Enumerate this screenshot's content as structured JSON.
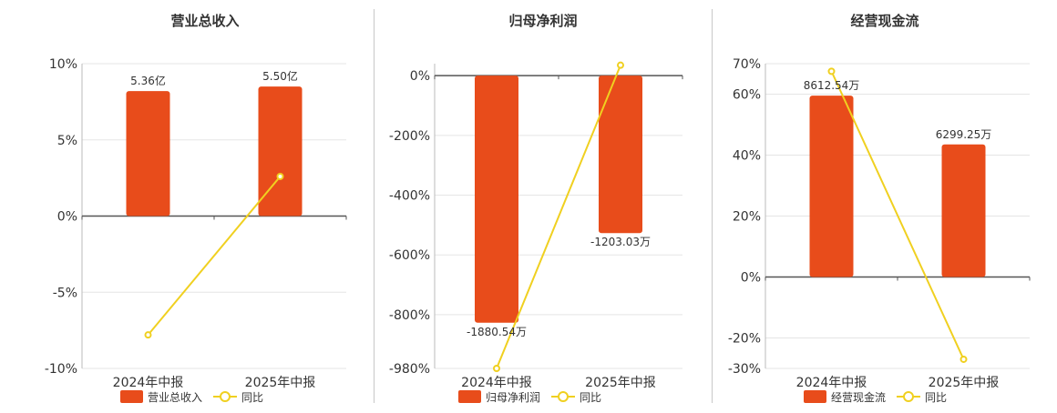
{
  "colors": {
    "bar": "#e84c1b",
    "line": "#f0d020",
    "axis": "#555555",
    "grid": "#e5e5e5",
    "text": "#333333"
  },
  "chart_data": [
    {
      "type": "bar",
      "title": "营业总收入",
      "categories": [
        "2024年中报",
        "2025年中报"
      ],
      "series": [
        {
          "name": "营业总收入",
          "type": "bar",
          "values": [
            8.2,
            8.5
          ],
          "labels": [
            "5.36亿",
            "5.50亿"
          ]
        },
        {
          "name": "同比",
          "type": "line",
          "values": [
            -7.8,
            2.6
          ]
        }
      ],
      "yticks": [
        10,
        5,
        0,
        -5,
        -10
      ],
      "ytick_labels": [
        "10%",
        "5%",
        "0%",
        "-5%",
        "-10%"
      ],
      "ylim": [
        -10,
        10
      ],
      "legend": "bottom"
    },
    {
      "type": "bar",
      "title": "归母净利润",
      "categories": [
        "2024年中报",
        "2025年中报"
      ],
      "series": [
        {
          "name": "归母净利润",
          "type": "bar",
          "values": [
            -827,
            -527
          ],
          "labels": [
            "-1880.54万",
            "-1203.03万"
          ]
        },
        {
          "name": "同比",
          "type": "line",
          "values": [
            -980,
            35
          ]
        }
      ],
      "yticks": [
        0,
        -200,
        -400,
        -600,
        -800,
        -980
      ],
      "ytick_labels": [
        "0%",
        "-200%",
        "-400%",
        "-600%",
        "-800%",
        "-980%"
      ],
      "ylim": [
        -980,
        40
      ],
      "legend": "bottom"
    },
    {
      "type": "bar",
      "title": "经营现金流",
      "categories": [
        "2024年中报",
        "2025年中报"
      ],
      "series": [
        {
          "name": "经营现金流",
          "type": "bar",
          "values": [
            59.5,
            43.5
          ],
          "labels": [
            "8612.54万",
            "6299.25万"
          ]
        },
        {
          "name": "同比",
          "type": "line",
          "values": [
            67.5,
            -27
          ]
        }
      ],
      "yticks": [
        70,
        60,
        40,
        20,
        0,
        -20,
        -30
      ],
      "ytick_labels": [
        "70%",
        "60%",
        "40%",
        "20%",
        "0%",
        "-20%",
        "-30%"
      ],
      "ylim": [
        -30,
        70
      ],
      "legend": "bottom"
    }
  ]
}
